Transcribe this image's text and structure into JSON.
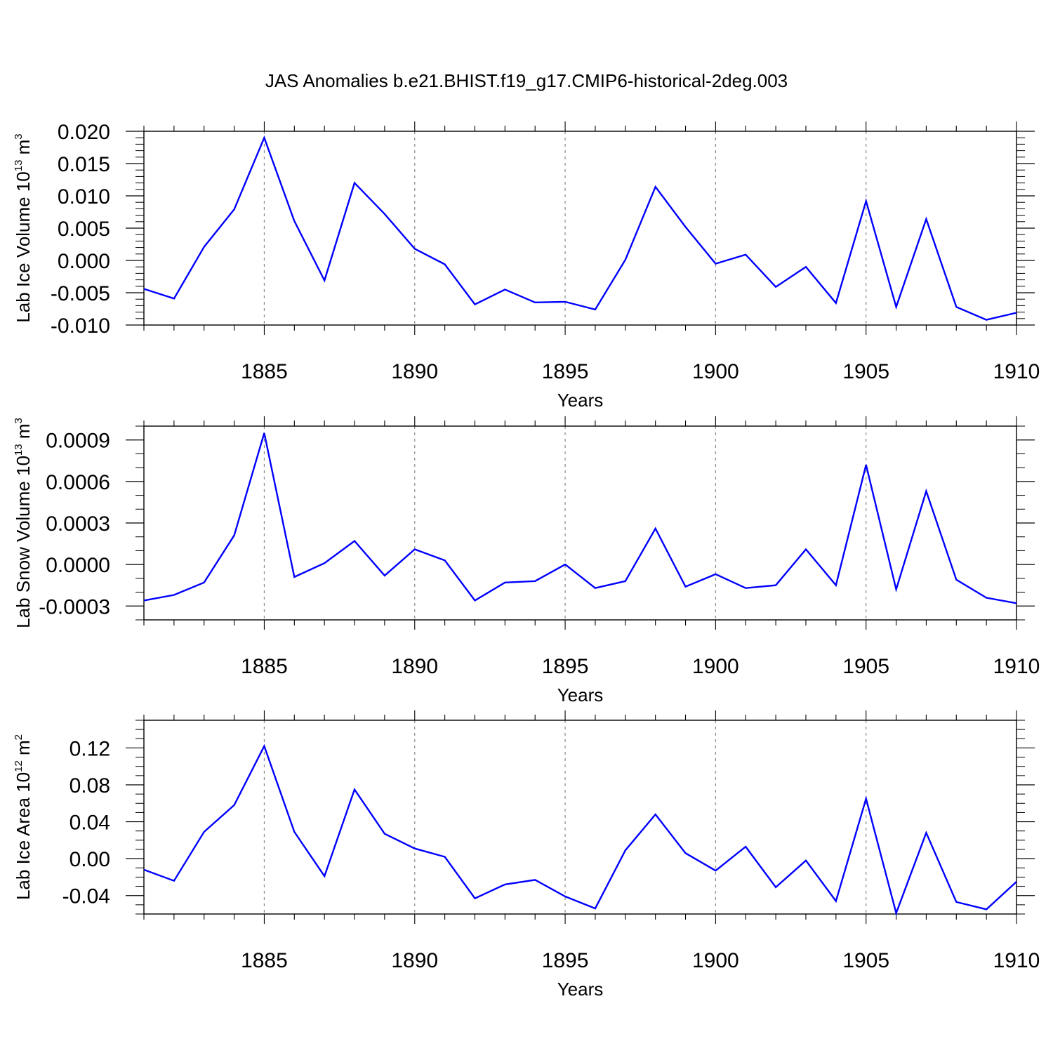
{
  "title": "JAS Anomalies b.e21.BHIST.f19_g17.CMIP6-historical-2deg.003",
  "colors": {
    "line": "#0000ff",
    "axis": "#000000",
    "grid": "#888888"
  },
  "chart_data": [
    {
      "type": "line",
      "ylabel_main": "Lab Ice Volume 10",
      "ylabel_exp": "13",
      "ylabel_unit": " m",
      "ylabel_unit_exp": "3",
      "xlabel": "Years",
      "xlim": [
        1881,
        1910
      ],
      "ylim": [
        -0.01,
        0.02
      ],
      "yticks": [
        -0.01,
        -0.005,
        0.0,
        0.005,
        0.01,
        0.015,
        0.02
      ],
      "ytick_labels": [
        "-0.010",
        "-0.005",
        "0.000",
        "0.005",
        "0.010",
        "0.015",
        "0.020"
      ],
      "yminor_step": 0.001,
      "xticks": [
        1885,
        1890,
        1895,
        1900,
        1905,
        1910
      ],
      "xtick_labels": [
        "1885",
        "1890",
        "1895",
        "1900",
        "1905",
        "1910"
      ],
      "x": [
        1881,
        1882,
        1883,
        1884,
        1885,
        1886,
        1887,
        1888,
        1889,
        1890,
        1891,
        1892,
        1893,
        1894,
        1895,
        1896,
        1897,
        1898,
        1899,
        1900,
        1901,
        1902,
        1903,
        1904,
        1905,
        1906,
        1907,
        1908,
        1909,
        1910
      ],
      "series": [
        {
          "name": "Lab Ice Volume",
          "values": [
            -0.0044,
            -0.0059,
            0.0021,
            0.0079,
            0.019,
            0.0061,
            -0.0031,
            0.012,
            0.0072,
            0.0018,
            -0.0006,
            -0.0068,
            -0.0045,
            -0.0065,
            -0.0064,
            -0.0076,
            0.0001,
            0.0114,
            0.0052,
            -0.0005,
            0.0009,
            -0.0041,
            -0.001,
            -0.0066,
            0.0092,
            -0.0072,
            0.0064,
            -0.0072,
            -0.0092,
            -0.0081
          ]
        }
      ]
    },
    {
      "type": "line",
      "ylabel_main": "Lab Snow Volume 10",
      "ylabel_exp": "13",
      "ylabel_unit": " m",
      "ylabel_unit_exp": "3",
      "xlabel": "Years",
      "xlim": [
        1881,
        1910
      ],
      "ylim": [
        -0.0004,
        0.001
      ],
      "yticks": [
        -0.0003,
        0.0,
        0.0003,
        0.0006,
        0.0009
      ],
      "ytick_labels": [
        "-0.0003",
        "0.0000",
        "0.0003",
        "0.0006",
        "0.0009"
      ],
      "yminor_step": 0.0001,
      "xticks": [
        1885,
        1890,
        1895,
        1900,
        1905,
        1910
      ],
      "xtick_labels": [
        "1885",
        "1890",
        "1895",
        "1900",
        "1905",
        "1910"
      ],
      "x": [
        1881,
        1882,
        1883,
        1884,
        1885,
        1886,
        1887,
        1888,
        1889,
        1890,
        1891,
        1892,
        1893,
        1894,
        1895,
        1896,
        1897,
        1898,
        1899,
        1900,
        1901,
        1902,
        1903,
        1904,
        1905,
        1906,
        1907,
        1908,
        1909,
        1910
      ],
      "series": [
        {
          "name": "Lab Snow Volume",
          "values": [
            -0.00026,
            -0.00022,
            -0.00013,
            0.00021,
            0.00095,
            -9e-05,
            1e-05,
            0.00017,
            -8e-05,
            0.00011,
            3e-05,
            -0.00026,
            -0.00013,
            -0.00012,
            0.0,
            -0.00017,
            -0.00012,
            0.00026,
            -0.00016,
            -7e-05,
            -0.00017,
            -0.00015,
            0.00011,
            -0.00015,
            0.00072,
            -0.00018,
            0.00053,
            -0.00011,
            -0.00024,
            -0.00028
          ]
        }
      ]
    },
    {
      "type": "line",
      "ylabel_main": "Lab Ice Area 10",
      "ylabel_exp": "12",
      "ylabel_unit": " m",
      "ylabel_unit_exp": "2",
      "xlabel": "Years",
      "xlim": [
        1881,
        1910
      ],
      "ylim": [
        -0.06,
        0.15
      ],
      "yticks": [
        -0.04,
        0.0,
        0.04,
        0.08,
        0.12
      ],
      "ytick_labels": [
        "-0.04",
        "0.00",
        "0.04",
        "0.08",
        "0.12"
      ],
      "yminor_step": 0.01,
      "xticks": [
        1885,
        1890,
        1895,
        1900,
        1905,
        1910
      ],
      "xtick_labels": [
        "1885",
        "1890",
        "1895",
        "1900",
        "1905",
        "1910"
      ],
      "x": [
        1881,
        1882,
        1883,
        1884,
        1885,
        1886,
        1887,
        1888,
        1889,
        1890,
        1891,
        1892,
        1893,
        1894,
        1895,
        1896,
        1897,
        1898,
        1899,
        1900,
        1901,
        1902,
        1903,
        1904,
        1905,
        1906,
        1907,
        1908,
        1909,
        1910
      ],
      "series": [
        {
          "name": "Lab Ice Area",
          "values": [
            -0.012,
            -0.024,
            0.029,
            0.058,
            0.122,
            0.029,
            -0.019,
            0.075,
            0.027,
            0.011,
            0.002,
            -0.043,
            -0.028,
            -0.023,
            -0.041,
            -0.054,
            0.009,
            0.048,
            0.006,
            -0.013,
            0.013,
            -0.031,
            -0.002,
            -0.046,
            0.065,
            -0.059,
            0.028,
            -0.047,
            -0.055,
            -0.025
          ]
        }
      ]
    }
  ]
}
